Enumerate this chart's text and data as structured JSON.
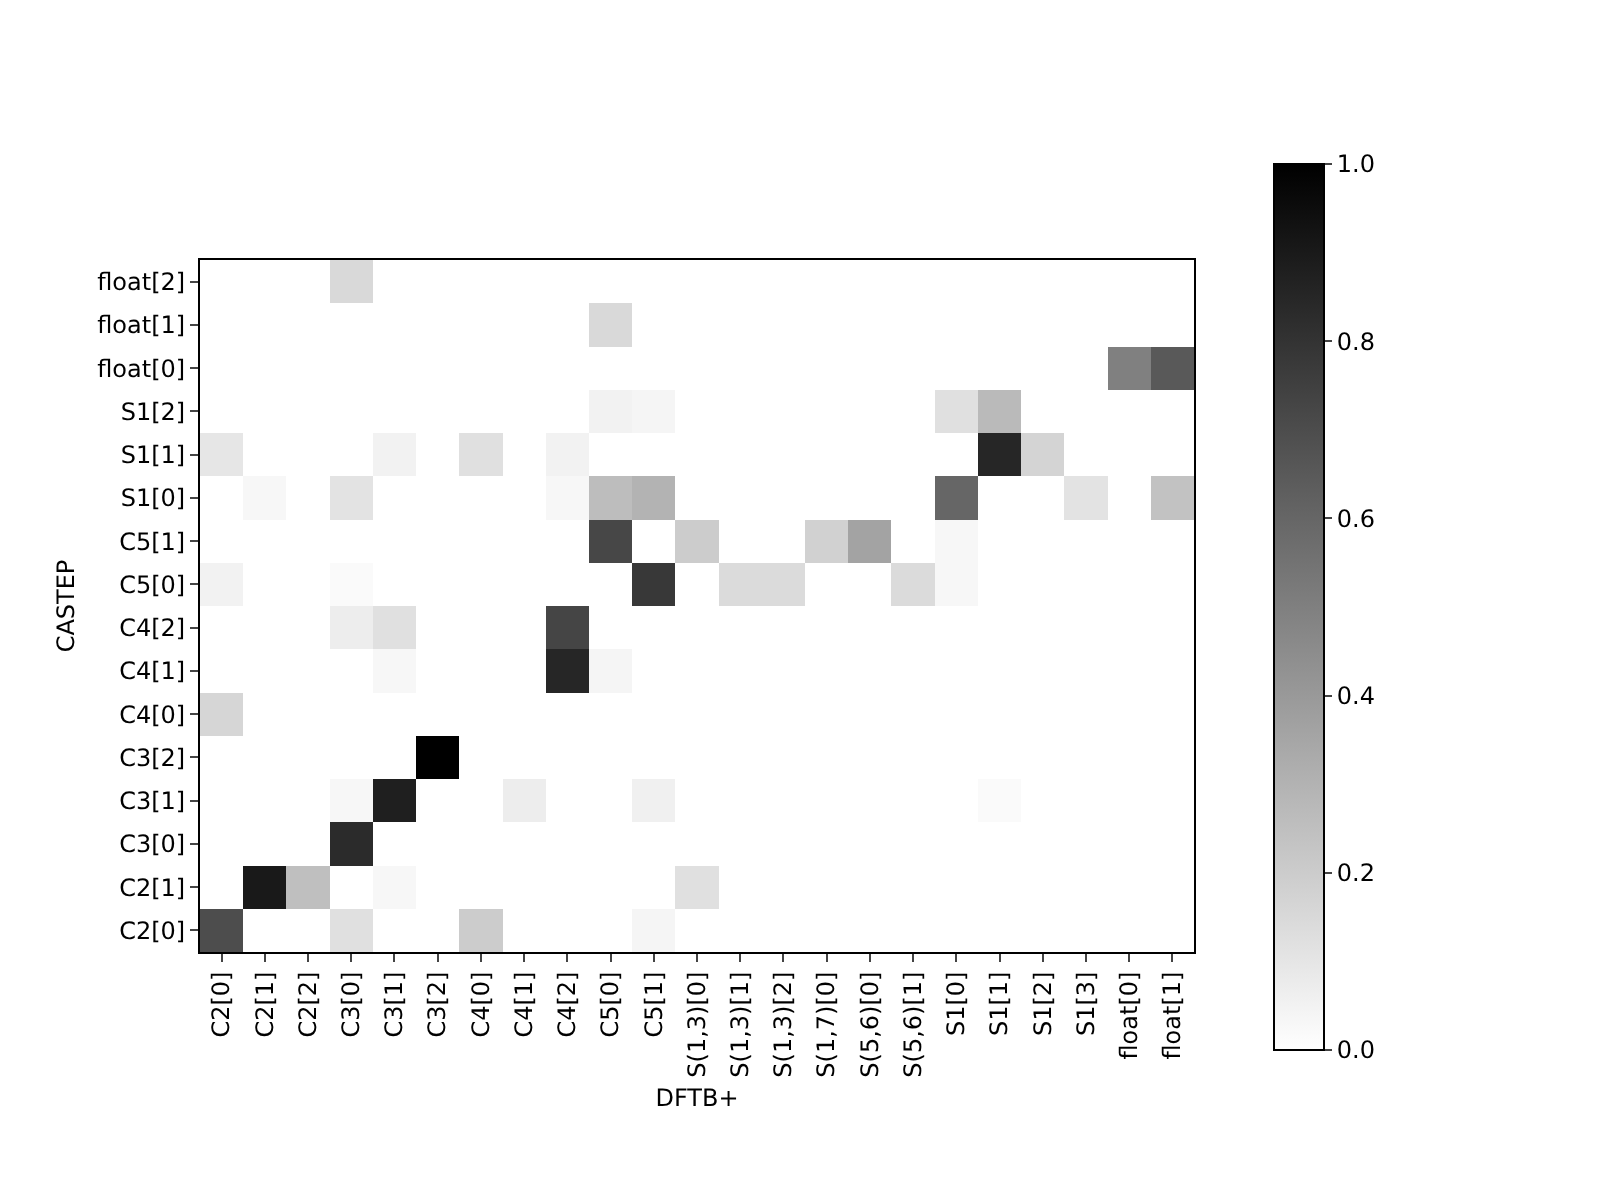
{
  "chart_data": {
    "type": "heatmap",
    "xlabel": "DFTB+",
    "ylabel": "CASTEP",
    "categories": [
      "C2[0]",
      "C2[1]",
      "C2[2]",
      "C3[0]",
      "C3[1]",
      "C3[2]",
      "C4[0]",
      "C4[1]",
      "C4[2]",
      "C5[0]",
      "C5[1]",
      "S(1,3)[0]",
      "S(1,3)[1]",
      "S(1,3)[2]",
      "S(1,7)[0]",
      "S(5,6)[0]",
      "S(5,6)[1]",
      "S1[0]",
      "S1[1]",
      "S1[2]",
      "S1[3]",
      "float[0]",
      "float[1]"
    ],
    "y_categories": [
      "float[2]",
      "float[1]",
      "float[0]",
      "S1[2]",
      "S1[1]",
      "S1[0]",
      "C5[1]",
      "C5[0]",
      "C4[2]",
      "C4[1]",
      "C4[0]",
      "C3[2]",
      "C3[1]",
      "C3[0]",
      "C2[1]",
      "C2[0]"
    ],
    "cells": [
      [
        0,
        0,
        0,
        0.15,
        0,
        0,
        0,
        0,
        0,
        0,
        0,
        0,
        0,
        0,
        0,
        0,
        0,
        0,
        0,
        0,
        0,
        0,
        0
      ],
      [
        0,
        0,
        0,
        0,
        0,
        0,
        0,
        0,
        0,
        0.15,
        0,
        0,
        0,
        0,
        0,
        0,
        0,
        0,
        0,
        0,
        0,
        0,
        0
      ],
      [
        0,
        0,
        0,
        0,
        0,
        0,
        0,
        0,
        0,
        0,
        0,
        0,
        0,
        0,
        0,
        0,
        0,
        0,
        0,
        0,
        0,
        0.5,
        0.65
      ],
      [
        0,
        0,
        0,
        0,
        0,
        0,
        0,
        0,
        0,
        0.05,
        0.04,
        0,
        0,
        0,
        0,
        0,
        0,
        0.12,
        0.27,
        0,
        0,
        0,
        0
      ],
      [
        0.1,
        0,
        0,
        0,
        0.05,
        0,
        0.12,
        0,
        0.05,
        0,
        0,
        0,
        0,
        0,
        0,
        0,
        0,
        0,
        0.85,
        0.17,
        0,
        0,
        0
      ],
      [
        0,
        0.03,
        0,
        0.11,
        0,
        0,
        0,
        0,
        0.03,
        0.26,
        0.3,
        0,
        0,
        0,
        0,
        0,
        0,
        0.6,
        0,
        0,
        0.11,
        0,
        0.24
      ],
      [
        0,
        0,
        0,
        0,
        0,
        0,
        0,
        0,
        0,
        0.72,
        0,
        0.2,
        0,
        0,
        0.18,
        0.36,
        0,
        0.03,
        0,
        0,
        0,
        0,
        0
      ],
      [
        0.05,
        0,
        0,
        0.02,
        0,
        0,
        0,
        0,
        0,
        0,
        0.78,
        0,
        0.14,
        0.14,
        0,
        0,
        0.14,
        0.03,
        0,
        0,
        0,
        0,
        0
      ],
      [
        0,
        0,
        0,
        0.07,
        0.12,
        0,
        0,
        0,
        0.73,
        0,
        0,
        0,
        0,
        0,
        0,
        0,
        0,
        0,
        0,
        0,
        0,
        0,
        0
      ],
      [
        0,
        0,
        0,
        0,
        0.03,
        0,
        0,
        0,
        0.85,
        0.04,
        0,
        0,
        0,
        0,
        0,
        0,
        0,
        0,
        0,
        0,
        0,
        0,
        0
      ],
      [
        0.16,
        0,
        0,
        0,
        0,
        0,
        0,
        0,
        0,
        0,
        0,
        0,
        0,
        0,
        0,
        0,
        0,
        0,
        0,
        0,
        0,
        0,
        0
      ],
      [
        0,
        0,
        0,
        0,
        0,
        1.0,
        0,
        0,
        0,
        0,
        0,
        0,
        0,
        0,
        0,
        0,
        0,
        0,
        0,
        0,
        0,
        0,
        0
      ],
      [
        0,
        0,
        0,
        0.03,
        0.88,
        0,
        0,
        0.07,
        0,
        0,
        0.06,
        0,
        0,
        0,
        0,
        0,
        0,
        0,
        0.02,
        0,
        0,
        0,
        0
      ],
      [
        0,
        0,
        0,
        0.83,
        0,
        0,
        0,
        0,
        0,
        0,
        0,
        0,
        0,
        0,
        0,
        0,
        0,
        0,
        0,
        0,
        0,
        0,
        0
      ],
      [
        0,
        0.9,
        0.25,
        0,
        0.03,
        0,
        0,
        0,
        0,
        0,
        0,
        0.12,
        0,
        0,
        0,
        0,
        0,
        0,
        0,
        0,
        0,
        0,
        0
      ],
      [
        0.7,
        0,
        0,
        0.12,
        0,
        0,
        0.2,
        0,
        0,
        0,
        0.04,
        0,
        0,
        0,
        0,
        0,
        0,
        0,
        0,
        0,
        0,
        0,
        0
      ]
    ],
    "clim": [
      0,
      1
    ],
    "cticks": [
      {
        "value": 0,
        "label": "0.0"
      },
      {
        "value": 0.2,
        "label": "0.2"
      },
      {
        "value": 0.4,
        "label": "0.4"
      },
      {
        "value": 0.6,
        "label": "0.6"
      },
      {
        "value": 0.8,
        "label": "0.8"
      },
      {
        "value": 1,
        "label": "1.0"
      }
    ]
  }
}
